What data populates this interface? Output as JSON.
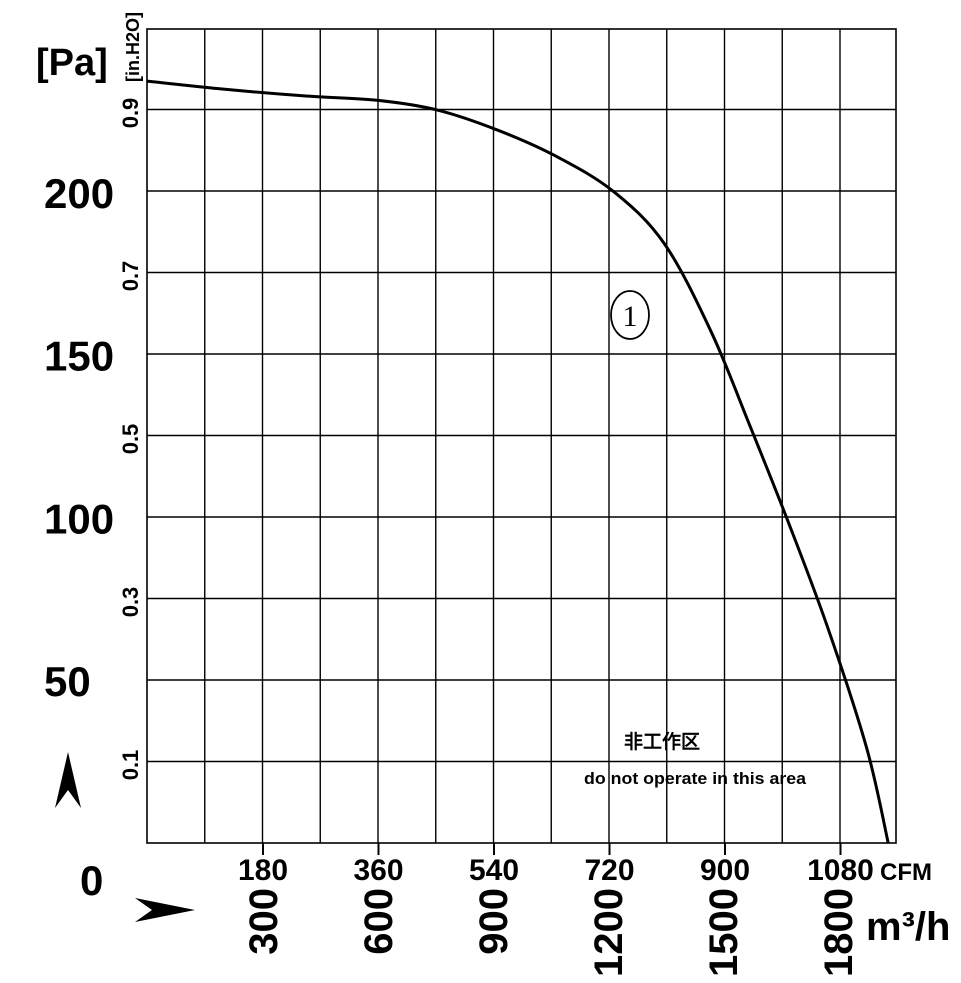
{
  "chart_data": {
    "type": "line",
    "title": "",
    "y_unit_label": "[Pa]",
    "y_unit_label_secondary": "[in.H2O]",
    "x_unit_label_cfm": "CFM",
    "x_unit_label_m3h": "m³/h",
    "x_m3h_ticks": [
      "300",
      "600",
      "900",
      "1200",
      "1500",
      "1800"
    ],
    "x_cfm_ticks": [
      "180",
      "360",
      "540",
      "720",
      "900",
      "1080"
    ],
    "y_pa_ticks": [
      "50",
      "100",
      "150",
      "200"
    ],
    "y_inh2o_ticks": [
      "0.1",
      "0.3",
      "0.5",
      "0.7",
      "0.9"
    ],
    "origin_label": "0",
    "x_range_m3h": [
      0,
      1925
    ],
    "y_range_pa": [
      0,
      250
    ],
    "grid": true,
    "series": [
      {
        "name": "①",
        "x_m3h": [
          0,
          200,
          400,
          600,
          750,
          900,
          1050,
          1200,
          1330,
          1450,
          1550,
          1650,
          1750,
          1850,
          1905
        ],
        "y_pa": [
          234,
          231.5,
          229.5,
          228,
          225,
          219,
          211,
          200,
          184,
          157,
          128,
          98,
          66,
          29,
          0
        ]
      }
    ],
    "annotations": {
      "curve_label": "①",
      "no_operate_cn": "非工作区",
      "no_operate_en": "do not operate in this area"
    }
  }
}
